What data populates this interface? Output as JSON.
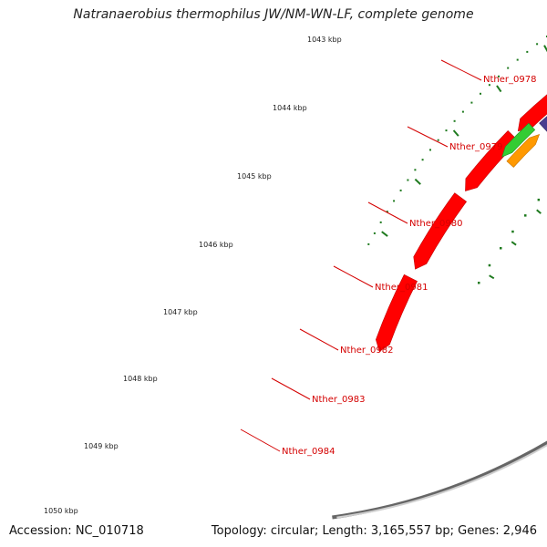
{
  "title": "Natranaerobius thermophilus JW/NM-WN-LF, complete genome",
  "footer": {
    "accession": "Accession: NC_010718",
    "topology": "Topology: circular; Length: 3,165,557 bp; Genes: 2,946"
  },
  "colors": {
    "backbone": "#888888",
    "forward_cds": "#ff0000",
    "reverse_cds": "#4a3d8f",
    "rna_a": "#00e5e5",
    "rna_b": "#33cc33",
    "rna_c": "#ff9900",
    "ticks": "#1e7a1e",
    "label": "#d40000"
  },
  "kbp_markers": [
    "1043 kbp",
    "1044 kbp",
    "1045 kbp",
    "1046 kbp",
    "1047 kbp",
    "1048 kbp",
    "1049 kbp",
    "1050 kbp"
  ],
  "gene_labels": [
    "Nther_0978",
    "Nther_0979",
    "Nther_0980",
    "Nther_0981",
    "Nther_0982",
    "Nther_0983",
    "Nther_0984"
  ]
}
